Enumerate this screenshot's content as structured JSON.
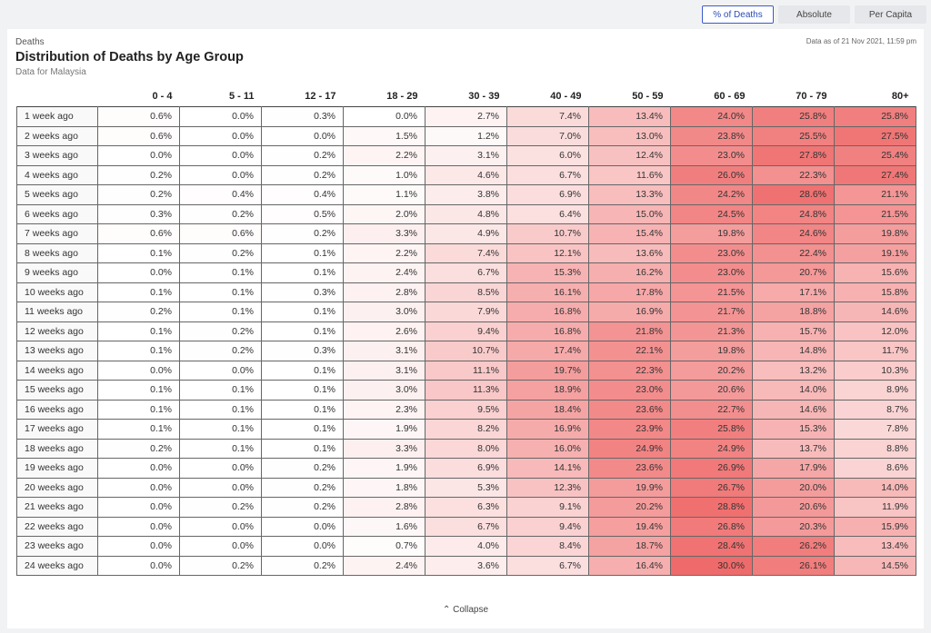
{
  "toggles": [
    {
      "label": "% of Deaths",
      "active": true
    },
    {
      "label": "Absolute",
      "active": false
    },
    {
      "label": "Per Capita",
      "active": false
    }
  ],
  "card": {
    "kicker": "Deaths",
    "as_of": "Data as of 21 Nov 2021, 11:59 pm",
    "subtitle": "Data for Malaysia",
    "collapse_label": "Collapse",
    "collapse_icon": "chevron-up-icon"
  },
  "colors": {
    "low": "#ffffff",
    "high": "#ef6a6a",
    "accent": "#2a4bb8"
  },
  "chart_data": {
    "type": "heatmap",
    "title": "Distribution of Deaths by Age Group",
    "unit": "%",
    "value_range": [
      0,
      30
    ],
    "columns": [
      "0 - 4",
      "5 - 11",
      "12 - 17",
      "18 - 29",
      "30 - 39",
      "40 - 49",
      "50 - 59",
      "60 - 69",
      "70 - 79",
      "80+"
    ],
    "rows": [
      "1 week ago",
      "2 weeks ago",
      "3 weeks ago",
      "4 weeks ago",
      "5 weeks ago",
      "6 weeks ago",
      "7 weeks ago",
      "8 weeks ago",
      "9 weeks ago",
      "10 weeks ago",
      "11 weeks ago",
      "12 weeks ago",
      "13 weeks ago",
      "14 weeks ago",
      "15 weeks ago",
      "16 weeks ago",
      "17 weeks ago",
      "18 weeks ago",
      "19 weeks ago",
      "20 weeks ago",
      "21 weeks ago",
      "22 weeks ago",
      "23 weeks ago",
      "24 weeks ago"
    ],
    "values": [
      [
        0.6,
        0.0,
        0.3,
        0.0,
        2.7,
        7.4,
        13.4,
        24.0,
        25.8,
        25.8
      ],
      [
        0.6,
        0.0,
        0.0,
        1.5,
        1.2,
        7.0,
        13.0,
        23.8,
        25.5,
        27.5
      ],
      [
        0.0,
        0.0,
        0.2,
        2.2,
        3.1,
        6.0,
        12.4,
        23.0,
        27.8,
        25.4
      ],
      [
        0.2,
        0.0,
        0.2,
        1.0,
        4.6,
        6.7,
        11.6,
        26.0,
        22.3,
        27.4
      ],
      [
        0.2,
        0.4,
        0.4,
        1.1,
        3.8,
        6.9,
        13.3,
        24.2,
        28.6,
        21.1
      ],
      [
        0.3,
        0.2,
        0.5,
        2.0,
        4.8,
        6.4,
        15.0,
        24.5,
        24.8,
        21.5
      ],
      [
        0.6,
        0.6,
        0.2,
        3.3,
        4.9,
        10.7,
        15.4,
        19.8,
        24.6,
        19.8
      ],
      [
        0.1,
        0.2,
        0.1,
        2.2,
        7.4,
        12.1,
        13.6,
        23.0,
        22.4,
        19.1
      ],
      [
        0.0,
        0.1,
        0.1,
        2.4,
        6.7,
        15.3,
        16.2,
        23.0,
        20.7,
        15.6
      ],
      [
        0.1,
        0.1,
        0.3,
        2.8,
        8.5,
        16.1,
        17.8,
        21.5,
        17.1,
        15.8
      ],
      [
        0.2,
        0.1,
        0.1,
        3.0,
        7.9,
        16.8,
        16.9,
        21.7,
        18.8,
        14.6
      ],
      [
        0.1,
        0.2,
        0.1,
        2.6,
        9.4,
        16.8,
        21.8,
        21.3,
        15.7,
        12.0
      ],
      [
        0.1,
        0.2,
        0.3,
        3.1,
        10.7,
        17.4,
        22.1,
        19.8,
        14.8,
        11.7
      ],
      [
        0.0,
        0.0,
        0.1,
        3.1,
        11.1,
        19.7,
        22.3,
        20.2,
        13.2,
        10.3
      ],
      [
        0.1,
        0.1,
        0.1,
        3.0,
        11.3,
        18.9,
        23.0,
        20.6,
        14.0,
        8.9
      ],
      [
        0.1,
        0.1,
        0.1,
        2.3,
        9.5,
        18.4,
        23.6,
        22.7,
        14.6,
        8.7
      ],
      [
        0.1,
        0.1,
        0.1,
        1.9,
        8.2,
        16.9,
        23.9,
        25.8,
        15.3,
        7.8
      ],
      [
        0.2,
        0.1,
        0.1,
        3.3,
        8.0,
        16.0,
        24.9,
        24.9,
        13.7,
        8.8
      ],
      [
        0.0,
        0.0,
        0.2,
        1.9,
        6.9,
        14.1,
        23.6,
        26.9,
        17.9,
        8.6
      ],
      [
        0.0,
        0.0,
        0.2,
        1.8,
        5.3,
        12.3,
        19.9,
        26.7,
        20.0,
        14.0
      ],
      [
        0.0,
        0.2,
        0.2,
        2.8,
        6.3,
        9.1,
        20.2,
        28.8,
        20.6,
        11.9
      ],
      [
        0.0,
        0.0,
        0.0,
        1.6,
        6.7,
        9.4,
        19.4,
        26.8,
        20.3,
        15.9
      ],
      [
        0.0,
        0.0,
        0.0,
        0.7,
        4.0,
        8.4,
        18.7,
        28.4,
        26.2,
        13.4
      ],
      [
        0.0,
        0.2,
        0.2,
        2.4,
        3.6,
        6.7,
        16.4,
        30.0,
        26.1,
        14.5
      ]
    ]
  }
}
